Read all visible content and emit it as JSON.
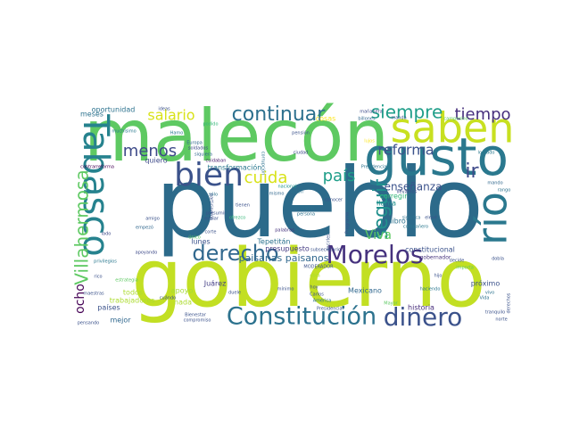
{
  "words": [
    {
      "text": "pueblo",
      "color": "#2c6a8a",
      "rot": 0
    },
    {
      "text": "gobierno",
      "color": "#c2df23",
      "rot": 0
    },
    {
      "text": "malecón",
      "color": "#5ec962",
      "rot": 0
    },
    {
      "text": "gusto",
      "color": "#2a788e",
      "rot": 0
    },
    {
      "text": "saben",
      "color": "#c8e020",
      "rot": 0
    },
    {
      "text": "Tabasco",
      "color": "#26828e",
      "rot": 90
    },
    {
      "text": "río",
      "color": "#2a788e",
      "rot": 270
    },
    {
      "text": "bien",
      "color": "#3b528b",
      "rot": 0
    },
    {
      "text": "Constitución",
      "color": "#2c728e",
      "rot": 0
    },
    {
      "text": "dinero",
      "color": "#3b528b",
      "rot": 0
    },
    {
      "text": "Morelos",
      "color": "#46327e",
      "rot": 0
    },
    {
      "text": "derecho",
      "color": "#31688e",
      "rot": 0
    },
    {
      "text": "continuar",
      "color": "#2d708e",
      "rot": 0
    },
    {
      "text": "Villahermosa",
      "color": "#5ec962",
      "rot": 270
    },
    {
      "text": "siempre",
      "color": "#1f9e89",
      "rot": 0
    },
    {
      "text": "tiempo",
      "color": "#472f7d",
      "rot": 0
    },
    {
      "text": "salario",
      "color": "#d8e219",
      "rot": 0
    },
    {
      "text": "menos",
      "color": "#3e4a89",
      "rot": 0
    },
    {
      "text": "cuida",
      "color": "#d8e219",
      "rot": 0
    },
    {
      "text": "país",
      "color": "#1f9e89",
      "rot": 0
    },
    {
      "text": "reforma",
      "color": "#3b528b",
      "rot": 0
    },
    {
      "text": "ir",
      "color": "#3e4a89",
      "rot": 0
    },
    {
      "text": "seguir",
      "color": "#21908d",
      "rot": 270
    },
    {
      "text": "enseñanza",
      "color": "#3b528b",
      "rot": 0
    },
    {
      "text": "Viva",
      "color": "#5ec962",
      "rot": 0
    },
    {
      "text": "ocho",
      "color": "#440154",
      "rot": 270
    },
    {
      "text": "llama",
      "color": "#21908d",
      "rot": 0
    },
    {
      "text": "presupuesto",
      "color": "#443a83",
      "rot": 0
    },
    {
      "text": "paisanas paisanos",
      "color": "#31688e",
      "rot": 0
    },
    {
      "text": "transformación",
      "color": "#2a788e",
      "rot": 0
    },
    {
      "text": "oportunidad",
      "color": "#2c728e",
      "rot": 0
    },
    {
      "text": "apoyo",
      "color": "#a5db36",
      "rot": 0
    },
    {
      "text": "quiero",
      "color": "#3e4a89",
      "rot": 0
    },
    {
      "text": "historia",
      "color": "#472d7b",
      "rot": 0
    },
    {
      "text": "próximo",
      "color": "#3b528b",
      "rot": 0
    },
    {
      "text": "libro",
      "color": "#2c728e",
      "rot": 0
    },
    {
      "text": "corregir",
      "color": "#35b779",
      "rot": 0
    },
    {
      "text": "constitucional",
      "color": "#3b528b",
      "rot": 0
    },
    {
      "text": "gobernador",
      "color": "#46337e",
      "rot": 0
    },
    {
      "text": "Mexicano",
      "color": "#31688e",
      "rot": 0
    },
    {
      "text": "Juárez",
      "color": "#433e85",
      "rot": 0
    },
    {
      "text": "nada",
      "color": "#addc30",
      "rot": 0
    },
    {
      "text": "lunes",
      "color": "#3b528b",
      "rot": 0
    },
    {
      "text": "Tepetitán",
      "color": "#2c728e",
      "rot": 0
    },
    {
      "text": "mañanera",
      "color": "#3e4a89",
      "rot": 0
    },
    {
      "text": "cosas",
      "color": "#fde725",
      "rot": 0
    },
    {
      "text": "billones",
      "color": "#31688e",
      "rot": 0
    },
    {
      "text": "manda",
      "color": "#3b528b",
      "rot": 0
    },
    {
      "text": "campesino",
      "color": "#5ec962",
      "rot": 0
    },
    {
      "text": "meses",
      "color": "#2c728e",
      "rot": 0
    },
    {
      "text": "ideas",
      "color": "#3b528b",
      "rot": 0
    },
    {
      "text": "podido",
      "color": "#35b779",
      "rot": 0
    },
    {
      "text": "muchísimo",
      "color": "#2a788e",
      "rot": 0
    },
    {
      "text": "Hamo",
      "color": "#2a788e",
      "rot": 0
    },
    {
      "text": "soldados",
      "color": "#3e4a89",
      "rot": 0
    },
    {
      "text": "siquiera",
      "color": "#31688e",
      "rot": 0
    },
    {
      "text": "cuidaban",
      "color": "#481a6c",
      "rot": 0
    },
    {
      "text": "pensión",
      "color": "#3b528b",
      "rot": 0
    },
    {
      "text": "ciudad",
      "color": "#3e4a89",
      "rot": 0
    },
    {
      "text": "Europa",
      "color": "#31688e",
      "rot": 0
    },
    {
      "text": "nacional",
      "color": "#21908d",
      "rot": 0
    },
    {
      "text": "mismo",
      "color": "#31688e",
      "rot": 0
    },
    {
      "text": "corrupción",
      "color": "#2c728e",
      "rot": 90
    },
    {
      "text": "contrarreforma",
      "color": "#440154",
      "rot": 0
    },
    {
      "text": "Presidencia",
      "color": "#2c728e",
      "rot": 0
    },
    {
      "text": "lujos",
      "color": "#fde725",
      "rot": 0
    },
    {
      "text": "logrado",
      "color": "#2a788e",
      "rot": 0
    },
    {
      "text": "rango",
      "color": "#2c728e",
      "rot": 0
    },
    {
      "text": "mando",
      "color": "#31688e",
      "rot": 0
    },
    {
      "text": "listón",
      "color": "#2c728e",
      "rot": 0
    },
    {
      "text": "conocer",
      "color": "#3b528b",
      "rot": 0
    },
    {
      "text": "llevamos",
      "color": "#3e4a89",
      "rot": 0
    },
    {
      "text": "significa",
      "color": "#2c728e",
      "rot": 0
    },
    {
      "text": "elevé",
      "color": "#3b528b",
      "rot": 0
    },
    {
      "text": "compañero",
      "color": "#2a788e",
      "rot": 0
    },
    {
      "text": "sólo",
      "color": "#2c728e",
      "rot": 0
    },
    {
      "text": "amigo",
      "color": "#3b528b",
      "rot": 0
    },
    {
      "text": "empezó",
      "color": "#31688e",
      "rot": 0
    },
    {
      "text": "lado",
      "color": "#3e4a89",
      "rot": 0
    },
    {
      "text": "corte",
      "color": "#3b528b",
      "rot": 0
    },
    {
      "text": "palabras",
      "color": "#46337e",
      "rot": 0
    },
    {
      "text": "participaron",
      "color": "#3b528b",
      "rot": 90
    },
    {
      "text": "Tolstoi",
      "color": "#2c728e",
      "rot": 0
    },
    {
      "text": "persona",
      "color": "#2c728e",
      "rot": 0
    },
    {
      "text": "Programa",
      "color": "#3b528b",
      "rot": 270
    },
    {
      "text": "decirles",
      "color": "#3b528b",
      "rot": 270
    },
    {
      "text": "apoyando",
      "color": "#3e4a89",
      "rot": 0
    },
    {
      "text": "presumir",
      "color": "#3b528b",
      "rot": 0
    },
    {
      "text": "MODERADOR",
      "color": "#3b528b",
      "rot": 0
    },
    {
      "text": "subsecretario",
      "color": "#3b528b",
      "rot": 0
    },
    {
      "text": "obra",
      "color": "#addc30",
      "rot": 0
    },
    {
      "text": "hijo",
      "color": "#3b528b",
      "rot": 0
    },
    {
      "text": "haciendo",
      "color": "#2a788e",
      "rot": 0
    },
    {
      "text": "decide",
      "color": "#3b528b",
      "rot": 0
    },
    {
      "text": "importa",
      "color": "#5ec962",
      "rot": 0
    },
    {
      "text": "dobla",
      "color": "#3b528b",
      "rot": 0
    },
    {
      "text": "vivo",
      "color": "#2c728e",
      "rot": 0
    },
    {
      "text": "Vida",
      "color": "#2c728e",
      "rot": 0
    },
    {
      "text": "tranquilo",
      "color": "#3b528b",
      "rot": 0
    },
    {
      "text": "norte",
      "color": "#3b528b",
      "rot": 0
    },
    {
      "text": "todos",
      "color": "#addc30",
      "rot": 0
    },
    {
      "text": "trabajadores",
      "color": "#addc30",
      "rot": 0
    },
    {
      "text": "países",
      "color": "#3b528b",
      "rot": 0
    },
    {
      "text": "mejor",
      "color": "#31688e",
      "rot": 0
    },
    {
      "text": "pensando",
      "color": "#3b528b",
      "rot": 0
    },
    {
      "text": "Bienestar",
      "color": "#3b528b",
      "rot": 0
    },
    {
      "text": "compromiso",
      "color": "#3b528b",
      "rot": 0
    },
    {
      "text": "mínimo",
      "color": "#3b528b",
      "rot": 0
    },
    {
      "text": "Carlos",
      "color": "#3b528b",
      "rot": 0
    },
    {
      "text": "América",
      "color": "#2c728e",
      "rot": 0
    },
    {
      "text": "hoy",
      "color": "#3b528b",
      "rot": 0
    },
    {
      "text": "Mayor",
      "color": "#5ec962",
      "rot": 0
    },
    {
      "text": "Presidencial",
      "color": "#3b528b",
      "rot": 0
    },
    {
      "text": "privilegios",
      "color": "#2a788e",
      "rot": 0
    },
    {
      "text": "maestras",
      "color": "#3b528b",
      "rot": 0
    },
    {
      "text": "rico",
      "color": "#3b528b",
      "rot": 0
    },
    {
      "text": "estrategia",
      "color": "#5ec962",
      "rot": 0
    },
    {
      "text": "cuándo",
      "color": "#3b528b",
      "rot": 0
    },
    {
      "text": "duele",
      "color": "#3b528b",
      "rot": 0
    },
    {
      "text": "enviar",
      "color": "#3b528b",
      "rot": 0
    },
    {
      "text": "único",
      "color": "#5ec962",
      "rot": 0
    },
    {
      "text": "ofrezco",
      "color": "#35b779",
      "rot": 0
    },
    {
      "text": "tienen",
      "color": "#3b528b",
      "rot": 0
    },
    {
      "text": "derechos",
      "color": "#3b528b",
      "rot": 270
    },
    {
      "text": "nuestro",
      "color": "#addc30",
      "rot": 270
    }
  ]
}
